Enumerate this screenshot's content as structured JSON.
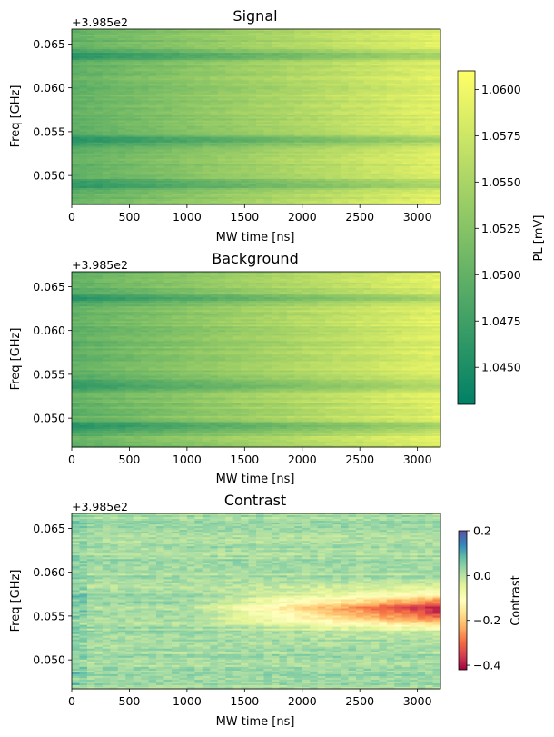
{
  "chart_data": [
    {
      "type": "heatmap",
      "title": "Signal",
      "xlabel": "MW time [ns]",
      "ylabel": "Freq [GHz]",
      "y_offset_label": "+3.985e2",
      "xlim": [
        0,
        3200
      ],
      "ylim": [
        0.0467,
        0.0667
      ],
      "x_ticks": [
        "0",
        "500",
        "1000",
        "1500",
        "2000",
        "2500",
        "3000"
      ],
      "y_ticks": [
        "0.050",
        "0.055",
        "0.060",
        "0.065"
      ],
      "colormap": "summer",
      "value_range": [
        1.043,
        1.061
      ],
      "dark_bands_ghz": [
        0.049,
        0.054,
        0.0637
      ],
      "colorbar": {
        "label": "PL [mV]",
        "ticks": [
          "1.0450",
          "1.0475",
          "1.0500",
          "1.0525",
          "1.0550",
          "1.0575",
          "1.0600"
        ],
        "shared_with": "Background"
      }
    },
    {
      "type": "heatmap",
      "title": "Background",
      "xlabel": "MW time [ns]",
      "ylabel": "Freq [GHz]",
      "y_offset_label": "+3.985e2",
      "xlim": [
        0,
        3200
      ],
      "ylim": [
        0.0467,
        0.0667
      ],
      "x_ticks": [
        "0",
        "500",
        "1000",
        "1500",
        "2000",
        "2500",
        "3000"
      ],
      "y_ticks": [
        "0.050",
        "0.055",
        "0.060",
        "0.065"
      ],
      "colormap": "summer",
      "value_range": [
        1.043,
        1.061
      ],
      "dark_bands_ghz": [
        0.049,
        0.0537,
        0.0637
      ]
    },
    {
      "type": "heatmap",
      "title": "Contrast",
      "xlabel": "MW time [ns]",
      "ylabel": "Freq [GHz]",
      "y_offset_label": "+3.985e2",
      "xlim": [
        0,
        3200
      ],
      "ylim": [
        0.0467,
        0.0667
      ],
      "x_ticks": [
        "0",
        "500",
        "1000",
        "1500",
        "2000",
        "2500",
        "3000"
      ],
      "y_ticks": [
        "0.050",
        "0.055",
        "0.060",
        "0.065"
      ],
      "colormap": "Spectral",
      "value_range": [
        -0.42,
        0.2
      ],
      "resonance_center_ghz": 0.0557,
      "resonance_onset_ns": 1000,
      "colorbar": {
        "label": "Contrast",
        "ticks": [
          "0.2",
          "0.0",
          "−0.2",
          "−0.4"
        ]
      }
    }
  ]
}
